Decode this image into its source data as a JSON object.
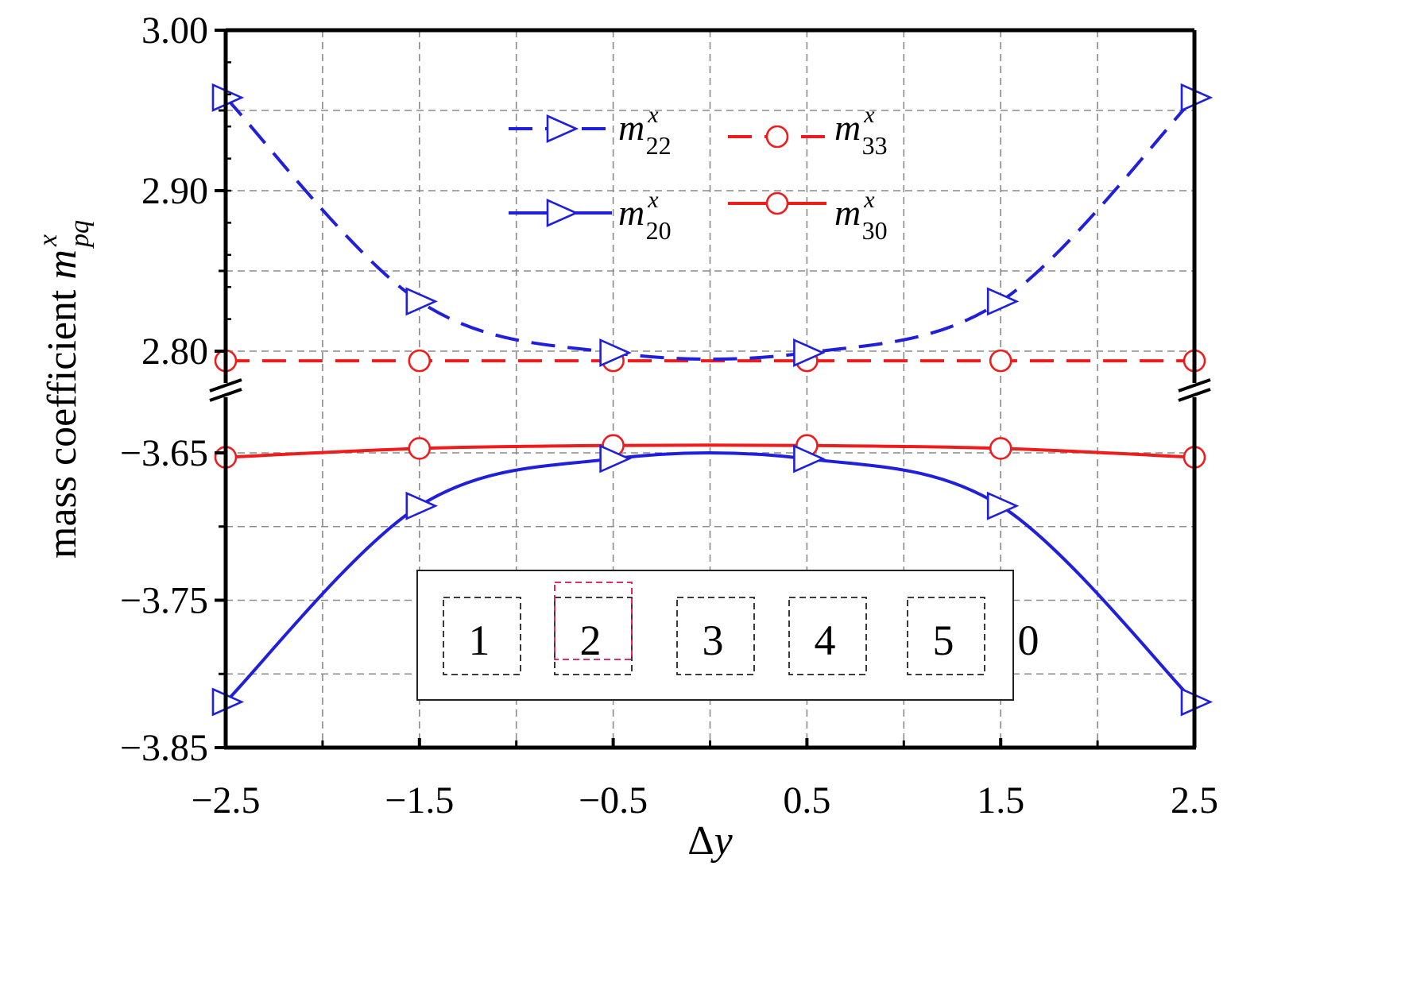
{
  "chart_data": {
    "type": "line",
    "broken_y_axis": true,
    "grid": true,
    "legend_placement": "top-center",
    "xlabel": {
      "prefix": "Δ",
      "var": "y"
    },
    "ylabel": {
      "text": "mass coefficient ",
      "var": "m",
      "sub": "pq",
      "sup": "x"
    },
    "xlim": [
      -2.5,
      2.5
    ],
    "x_ticks": [
      "−2.5",
      "−1.5",
      "−0.5",
      "0.5",
      "1.5",
      "2.5"
    ],
    "upper_panel": {
      "ylim": [
        2.8,
        3.0
      ],
      "y_ticks": [
        "3.00",
        "2.90",
        "2.80"
      ]
    },
    "lower_panel": {
      "ylim": [
        -3.85,
        -3.65
      ],
      "y_ticks": [
        "−3.65",
        "−3.75",
        "−3.85"
      ]
    },
    "x": [
      -2.5,
      -1.5,
      -0.5,
      0.5,
      1.5,
      2.5
    ],
    "series": [
      {
        "name": "m22x",
        "label": {
          "var": "m",
          "sub": "22",
          "sup": "x"
        },
        "panel": "upper",
        "color": "#1f1fdc",
        "line": "dashed",
        "marker": "triangle-right",
        "values": [
          2.958,
          2.831,
          2.799,
          2.799,
          2.831,
          2.958
        ]
      },
      {
        "name": "m33x",
        "label": {
          "var": "m",
          "sub": "33",
          "sup": "x"
        },
        "panel": "upper",
        "color": "#ee1c1c",
        "line": "dashed",
        "marker": "circle",
        "values": [
          2.794,
          2.794,
          2.794,
          2.794,
          2.794,
          2.794
        ]
      },
      {
        "name": "m20x",
        "label": {
          "var": "m",
          "sub": "20",
          "sup": "x"
        },
        "panel": "lower",
        "color": "#1f1fdc",
        "line": "solid",
        "marker": "triangle-right",
        "values": [
          -3.819,
          -3.686,
          -3.654,
          -3.654,
          -3.686,
          -3.819
        ]
      },
      {
        "name": "m30x",
        "label": {
          "var": "m",
          "sub": "30",
          "sup": "x"
        },
        "panel": "lower",
        "color": "#ee1c1c",
        "line": "solid",
        "marker": "circle",
        "values": [
          -3.653,
          -3.647,
          -3.645,
          -3.645,
          -3.647,
          -3.653
        ]
      }
    ],
    "inset": {
      "boxes": [
        "1",
        "2",
        "3",
        "4",
        "5"
      ],
      "trailing_label": "0"
    }
  }
}
